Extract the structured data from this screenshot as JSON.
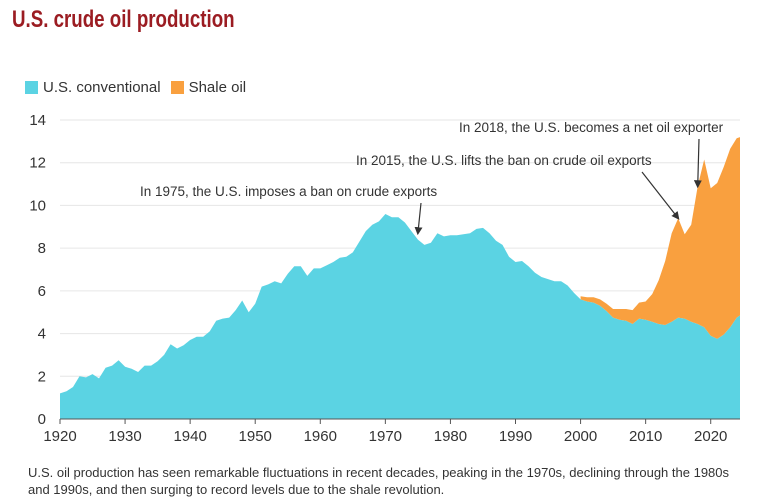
{
  "title": "U.S. crude oil production",
  "legend": [
    {
      "label": "U.S. conventional",
      "color": "#5bd3e3"
    },
    {
      "label": "Shale oil",
      "color": "#f9a03f"
    }
  ],
  "caption": "U.S. oil production has seen remarkable fluctuations in recent decades, peaking in the 1970s, declining through the 1980s and 1990s, and then surging to record levels due to the shale revolution.",
  "chart_data": {
    "type": "area",
    "stacked": true,
    "xlim": [
      1920,
      2024.5
    ],
    "ylim": [
      0,
      14
    ],
    "x_ticks": [
      1920,
      1930,
      1940,
      1950,
      1960,
      1970,
      1980,
      1990,
      2000,
      2010,
      2020
    ],
    "y_ticks": [
      0,
      2,
      4,
      6,
      8,
      10,
      12,
      14
    ],
    "grid": "horizontal",
    "legend_position": "top-left",
    "series": [
      {
        "name": "U.S. conventional",
        "color": "#5bd3e3",
        "points": [
          [
            1920,
            1.2
          ],
          [
            1921,
            1.3
          ],
          [
            1922,
            1.5
          ],
          [
            1923,
            2.0
          ],
          [
            1924,
            1.95
          ],
          [
            1925,
            2.1
          ],
          [
            1926,
            1.9
          ],
          [
            1927,
            2.4
          ],
          [
            1928,
            2.5
          ],
          [
            1929,
            2.75
          ],
          [
            1930,
            2.45
          ],
          [
            1931,
            2.35
          ],
          [
            1932,
            2.2
          ],
          [
            1933,
            2.5
          ],
          [
            1934,
            2.5
          ],
          [
            1935,
            2.7
          ],
          [
            1936,
            3.0
          ],
          [
            1937,
            3.5
          ],
          [
            1938,
            3.3
          ],
          [
            1939,
            3.45
          ],
          [
            1940,
            3.7
          ],
          [
            1941,
            3.85
          ],
          [
            1942,
            3.85
          ],
          [
            1943,
            4.1
          ],
          [
            1944,
            4.6
          ],
          [
            1945,
            4.7
          ],
          [
            1946,
            4.75
          ],
          [
            1947,
            5.1
          ],
          [
            1948,
            5.55
          ],
          [
            1949,
            5.0
          ],
          [
            1950,
            5.4
          ],
          [
            1951,
            6.2
          ],
          [
            1952,
            6.3
          ],
          [
            1953,
            6.45
          ],
          [
            1954,
            6.35
          ],
          [
            1955,
            6.8
          ],
          [
            1956,
            7.15
          ],
          [
            1957,
            7.15
          ],
          [
            1958,
            6.7
          ],
          [
            1959,
            7.05
          ],
          [
            1960,
            7.05
          ],
          [
            1961,
            7.2
          ],
          [
            1962,
            7.35
          ],
          [
            1963,
            7.55
          ],
          [
            1964,
            7.6
          ],
          [
            1965,
            7.8
          ],
          [
            1966,
            8.3
          ],
          [
            1967,
            8.8
          ],
          [
            1968,
            9.1
          ],
          [
            1969,
            9.25
          ],
          [
            1970,
            9.6
          ],
          [
            1971,
            9.45
          ],
          [
            1972,
            9.45
          ],
          [
            1973,
            9.2
          ],
          [
            1974,
            8.8
          ],
          [
            1975,
            8.4
          ],
          [
            1976,
            8.15
          ],
          [
            1977,
            8.25
          ],
          [
            1978,
            8.7
          ],
          [
            1979,
            8.55
          ],
          [
            1980,
            8.6
          ],
          [
            1981,
            8.6
          ],
          [
            1982,
            8.65
          ],
          [
            1983,
            8.7
          ],
          [
            1984,
            8.9
          ],
          [
            1985,
            8.95
          ],
          [
            1986,
            8.7
          ],
          [
            1987,
            8.35
          ],
          [
            1988,
            8.15
          ],
          [
            1989,
            7.6
          ],
          [
            1990,
            7.35
          ],
          [
            1991,
            7.4
          ],
          [
            1992,
            7.15
          ],
          [
            1993,
            6.85
          ],
          [
            1994,
            6.65
          ],
          [
            1995,
            6.55
          ],
          [
            1996,
            6.45
          ],
          [
            1997,
            6.45
          ],
          [
            1998,
            6.25
          ],
          [
            1999,
            5.9
          ],
          [
            2000,
            5.6
          ],
          [
            2001,
            5.5
          ],
          [
            2002,
            5.45
          ],
          [
            2003,
            5.3
          ],
          [
            2004,
            5.05
          ],
          [
            2005,
            4.75
          ],
          [
            2006,
            4.65
          ],
          [
            2007,
            4.6
          ],
          [
            2008,
            4.45
          ],
          [
            2009,
            4.7
          ],
          [
            2010,
            4.65
          ],
          [
            2011,
            4.55
          ],
          [
            2012,
            4.45
          ],
          [
            2013,
            4.4
          ],
          [
            2014,
            4.55
          ],
          [
            2015,
            4.75
          ],
          [
            2016,
            4.7
          ],
          [
            2017,
            4.55
          ],
          [
            2018,
            4.45
          ],
          [
            2019,
            4.3
          ],
          [
            2020,
            3.9
          ],
          [
            2021,
            3.75
          ],
          [
            2022,
            3.95
          ],
          [
            2023,
            4.3
          ],
          [
            2024,
            4.75
          ],
          [
            2024.5,
            4.85
          ]
        ]
      },
      {
        "name": "Shale oil",
        "color": "#f9a03f",
        "points": [
          [
            2000,
            0.15
          ],
          [
            2001,
            0.2
          ],
          [
            2002,
            0.25
          ],
          [
            2003,
            0.3
          ],
          [
            2004,
            0.35
          ],
          [
            2005,
            0.4
          ],
          [
            2006,
            0.5
          ],
          [
            2007,
            0.55
          ],
          [
            2008,
            0.65
          ],
          [
            2009,
            0.75
          ],
          [
            2010,
            0.85
          ],
          [
            2011,
            1.3
          ],
          [
            2012,
            2.05
          ],
          [
            2013,
            3.0
          ],
          [
            2014,
            4.15
          ],
          [
            2015,
            4.65
          ],
          [
            2016,
            3.95
          ],
          [
            2017,
            4.55
          ],
          [
            2018,
            6.45
          ],
          [
            2019,
            7.85
          ],
          [
            2020,
            6.9
          ],
          [
            2021,
            7.3
          ],
          [
            2022,
            7.85
          ],
          [
            2023,
            8.35
          ],
          [
            2024,
            8.4
          ],
          [
            2024.5,
            8.35
          ]
        ]
      }
    ],
    "annotations": [
      {
        "text": "In 1975, the U.S. imposes a ban on crude exports",
        "target": [
          1975,
          8.7
        ]
      },
      {
        "text": "In 2015, the U.S. lifts the ban on crude oil exports",
        "target": [
          2015,
          9.4
        ]
      },
      {
        "text": "In 2018, the U.S. becomes a net oil exporter",
        "target": [
          2018,
          10.9
        ]
      }
    ]
  }
}
